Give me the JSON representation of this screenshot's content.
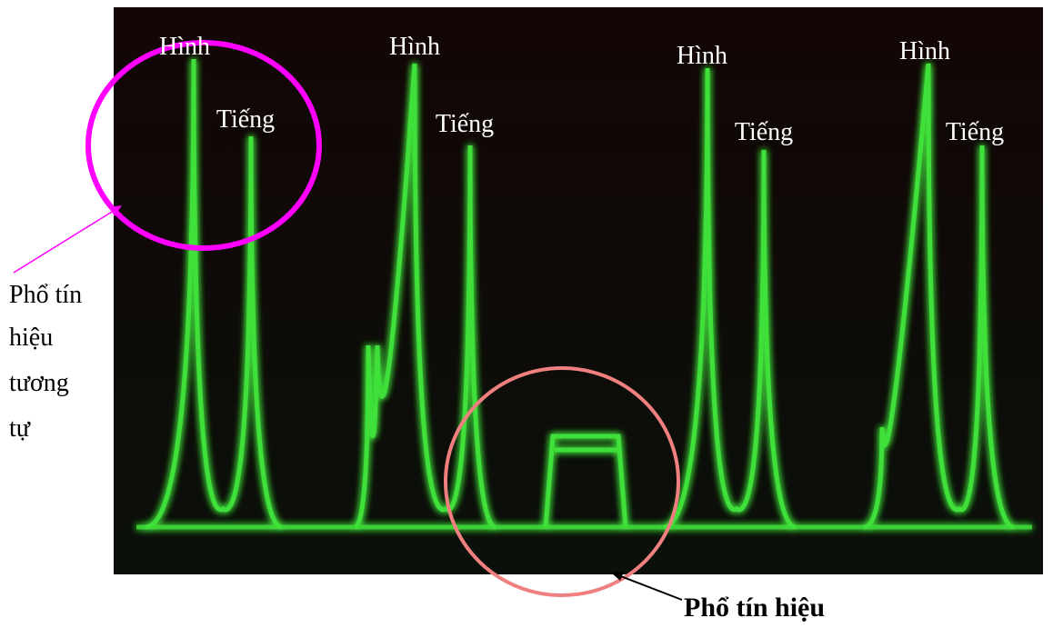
{
  "peak_labels": [
    {
      "top": "Hình",
      "bottom": "Tiếng"
    },
    {
      "top": "Hình",
      "bottom": "Tiếng"
    },
    {
      "top": "Hình",
      "bottom": "Tiếng"
    },
    {
      "top": "Hình",
      "bottom": "Tiếng"
    }
  ],
  "annotations": {
    "analog": [
      "Phổ tín",
      "hiệu",
      "tương",
      "tự"
    ],
    "digital": "Phổ tín hiệu"
  }
}
